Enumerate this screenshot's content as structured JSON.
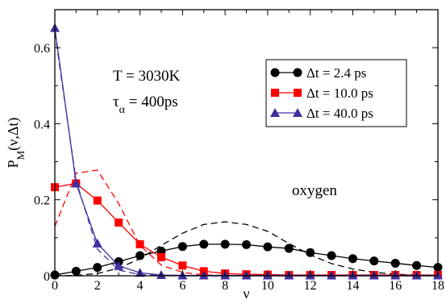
{
  "chart_data": {
    "type": "line",
    "xlabel": "ν",
    "ylabel_main": "P",
    "ylabel_sub": "M",
    "ylabel_rest": "(ν,Δt)",
    "xlim": [
      0,
      18
    ],
    "ylim": [
      0,
      0.7
    ],
    "xticks": [
      0,
      2,
      4,
      6,
      8,
      10,
      12,
      14,
      16,
      18
    ],
    "yticks": [
      0,
      0.2,
      0.4,
      0.6
    ],
    "ytick_labels": [
      "0",
      "0.2",
      "0.4",
      "0.6"
    ],
    "annotations": {
      "temperature": "T = 3030K",
      "tau_main": "τ",
      "tau_sub": "α",
      "tau_rest": " = 400ps",
      "species": "oxygen"
    },
    "legend_position": "top-right",
    "series": [
      {
        "name": "Δt = 2.4 ps",
        "color": "#000000",
        "marker": "circle",
        "x": [
          0,
          1,
          2,
          3,
          4,
          5,
          6,
          7,
          8,
          9,
          10,
          11,
          12,
          13,
          14,
          15,
          16,
          17,
          18
        ],
        "values": [
          0.002,
          0.012,
          0.022,
          0.037,
          0.053,
          0.065,
          0.077,
          0.083,
          0.083,
          0.082,
          0.076,
          0.072,
          0.061,
          0.053,
          0.045,
          0.039,
          0.033,
          0.027,
          0.022
        ]
      },
      {
        "name": "Δt = 10.0 ps",
        "color": "#ff0000",
        "marker": "square",
        "x": [
          0,
          1,
          2,
          3,
          4,
          5,
          6,
          7,
          8,
          9,
          10,
          11,
          12,
          13,
          14,
          15,
          16,
          17,
          18
        ],
        "values": [
          0.233,
          0.243,
          0.198,
          0.14,
          0.083,
          0.049,
          0.027,
          0.012,
          0.006,
          0.004,
          0.003,
          0.002,
          0.002,
          0.002,
          0.002,
          0.002,
          0.002,
          0.002,
          0.002
        ]
      },
      {
        "name": "Δt = 40.0 ps",
        "color": "#3f2f9f",
        "marker": "triangle",
        "x": [
          0,
          1,
          2,
          3,
          4,
          5,
          6,
          7,
          8,
          9,
          10,
          11,
          12,
          13,
          14,
          15,
          16,
          17,
          18
        ],
        "values": [
          0.652,
          0.243,
          0.085,
          0.026,
          0.008,
          0.002,
          0.001,
          0.001,
          0.001,
          0.001,
          0.001,
          0.001,
          0.001,
          0.001,
          0.001,
          0.001,
          0.001,
          0.001,
          0.001
        ]
      }
    ],
    "dashed_curves": [
      {
        "color": "#000000",
        "x": [
          0,
          1,
          2,
          3,
          4,
          5,
          6,
          7,
          8,
          9,
          10,
          11,
          12,
          13,
          14,
          15,
          16,
          17,
          18
        ],
        "values": [
          0,
          0.001,
          0.006,
          0.02,
          0.045,
          0.08,
          0.112,
          0.135,
          0.142,
          0.135,
          0.117,
          0.085,
          0.055,
          0.032,
          0.018,
          0.009,
          0.004,
          0.002,
          0.001
        ]
      },
      {
        "color": "#ff0000",
        "x": [
          0,
          1,
          2,
          3,
          4,
          5,
          6,
          7,
          8,
          9,
          10,
          11,
          12,
          13,
          14,
          15,
          16,
          17,
          18
        ],
        "values": [
          0.13,
          0.27,
          0.278,
          0.19,
          0.08,
          0.028,
          0.009,
          0.002,
          0.001,
          0,
          0,
          0,
          0,
          0,
          0,
          0,
          0,
          0,
          0
        ]
      },
      {
        "color": "#3f2f9f",
        "x": [
          0,
          1,
          2,
          3,
          4,
          5,
          6,
          7,
          8,
          9,
          10,
          11,
          12,
          13,
          14,
          15,
          16,
          17,
          18
        ],
        "values": [
          0.64,
          0.25,
          0.07,
          0.015,
          0.003,
          0.0005,
          0,
          0,
          0,
          0,
          0,
          0,
          0,
          0,
          0,
          0,
          0,
          0,
          0
        ]
      }
    ]
  }
}
